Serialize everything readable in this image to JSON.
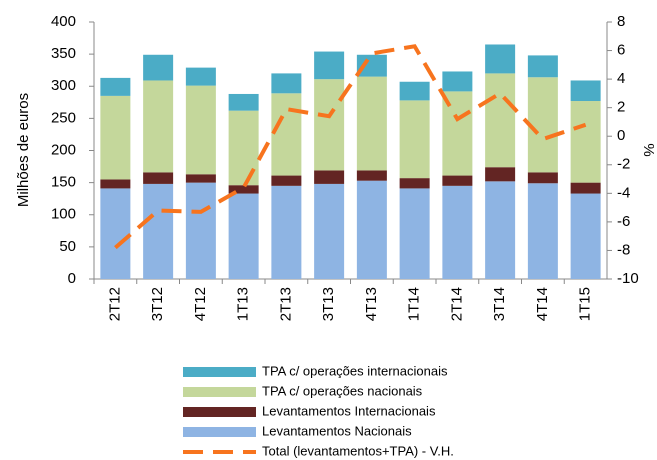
{
  "chart_data": {
    "type": "bar",
    "categories": [
      "2T12",
      "3T12",
      "4T12",
      "1T13",
      "2T13",
      "3T13",
      "4T13",
      "1T14",
      "2T14",
      "3T14",
      "4T14",
      "1T15"
    ],
    "y_label": "Milhões de euros",
    "y2_label": "%",
    "ylim": [
      0,
      400
    ],
    "yticks": [
      0,
      50,
      100,
      150,
      200,
      250,
      300,
      350,
      400
    ],
    "y2lim": [
      -10,
      8
    ],
    "y2ticks": [
      -10,
      -8,
      -6,
      -4,
      -2,
      0,
      2,
      4,
      6,
      8
    ],
    "stacked": true,
    "series": [
      {
        "name": "Levantamentos Nacionais",
        "color": "#8EB4E3",
        "values": [
          141,
          148,
          150,
          133,
          145,
          148,
          153,
          141,
          145,
          152,
          149,
          133
        ]
      },
      {
        "name": "Levantamentos Internacionais",
        "color": "#632523",
        "values": [
          14,
          18,
          13,
          13,
          16,
          21,
          16,
          16,
          16,
          22,
          17,
          17
        ]
      },
      {
        "name": "TPA c/ operações nacionais",
        "color": "#C4D79B",
        "values": [
          130,
          143,
          138,
          116,
          128,
          142,
          146,
          121,
          131,
          146,
          148,
          127
        ]
      },
      {
        "name": "TPA c/ operações internacionais",
        "color": "#4BACC6",
        "values": [
          28,
          40,
          28,
          26,
          31,
          43,
          34,
          29,
          31,
          45,
          34,
          32
        ]
      },
      {
        "name": "Total (levantamentos+TPA) - V.H.",
        "color": "#F7741E",
        "type": "line",
        "axis": "y2",
        "dashed": true,
        "values": [
          -7.8,
          -5.2,
          -5.3,
          -3.6,
          1.9,
          1.4,
          5.8,
          6.3,
          1.2,
          3.0,
          -0.2,
          0.8
        ]
      }
    ]
  }
}
